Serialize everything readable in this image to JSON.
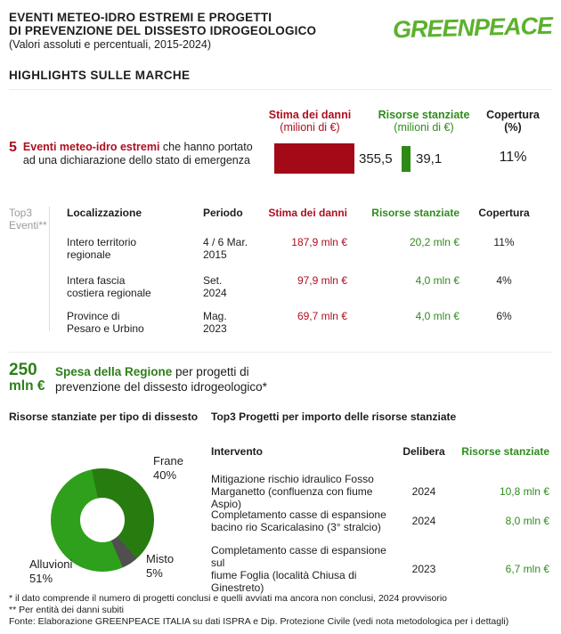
{
  "colors": {
    "red_text": "#ad0f1f",
    "red_bar": "#a40917",
    "green_text": "#2f8c1d",
    "green_bar": "#2e8a17",
    "logo_green": "#5cb12d",
    "donut_frane": "#287c0f",
    "donut_misto": "#4f4f4f",
    "donut_alluvioni": "#2fa01b"
  },
  "header": {
    "title_line1": "EVENTI METEO-IDRO ESTREMI E PROGETTI",
    "title_line2": "DI PREVENZIONE DEL DISSESTO IDROGEOLOGICO",
    "subtitle": "(Valori assoluti e percentuali, 2015-2024)",
    "logo_text": "GREENPEACE",
    "section_heading": "HIGHLIGHTS SULLE MARCHE"
  },
  "summary": {
    "count": "5",
    "lead_bold": "Eventi meteo-idro estremi",
    "lead_rest": " che hanno portato ad una dichiarazione dello stato di emergenza",
    "columns": {
      "damage_title": "Stima dei danni",
      "damage_sub": "(milioni di €)",
      "resources_title": "Risorse stanziate",
      "resources_sub": "(milioni di €)",
      "coverage_title": "Copertura",
      "coverage_sub": "(%)"
    },
    "damage_value": "355,5",
    "resources_value": "39,1",
    "coverage_value": "11%"
  },
  "events_table": {
    "side_label_1": "Top3",
    "side_label_2": "Eventi**",
    "headers": {
      "localizzazione": "Localizzazione",
      "periodo": "Periodo",
      "stima": "Stima dei danni",
      "risorse": "Risorse stanziate",
      "copertura": "Copertura"
    },
    "rows": [
      {
        "loc1": "Intero territorio",
        "loc2": "regionale",
        "per1": "4 / 6 Mar.",
        "per2": "2015",
        "stima": "187,9 mln €",
        "risorse": "20,2 mln €",
        "copertura": "11%"
      },
      {
        "loc1": "Intera fascia",
        "loc2": "costiera regionale",
        "per1": "Set.",
        "per2": "2024",
        "stima": "97,9 mln €",
        "risorse": "4,0 mln €",
        "copertura": "4%"
      },
      {
        "loc1": "Province di",
        "loc2": "Pesaro e Urbino",
        "per1": "Mag.",
        "per2": "2023",
        "stima": "69,7 mln €",
        "risorse": "4,0 mln €",
        "copertura": "6%"
      }
    ]
  },
  "spending": {
    "amount_1": "250",
    "amount_2": "mln €",
    "desc_bold": "Spesa della Regione",
    "desc_rest": " per progetti di prevenzione del dissesto idrogeologico*"
  },
  "donut_section": {
    "title": "Risorse stanziate per tipo di dissesto"
  },
  "projects_table": {
    "title": "Top3 Progetti per importo delle risorse stanziate",
    "headers": {
      "intervento": "Intervento",
      "delibera": "Delibera",
      "risorse": "Risorse stanziate"
    },
    "rows": [
      {
        "int1": "Mitigazione rischio idraulico Fosso",
        "int2": "Marganetto (confluenza con fiume Aspio)",
        "delibera": "2024",
        "risorse": "10,8 mln €"
      },
      {
        "int1": "Completamento casse di espansione",
        "int2": "bacino rio Scaricalasino (3° stralcio)",
        "delibera": "2024",
        "risorse": "8,0 mln €"
      },
      {
        "int1": "Completamento casse di espansione sul",
        "int2": "fiume Foglia (località Chiusa di Ginestreto)",
        "delibera": "2023",
        "risorse": "6,7 mln €"
      }
    ]
  },
  "footer": {
    "note1": "* il dato comprende il numero di progetti conclusi e quelli avviati ma ancora non conclusi, 2024 provvisorio",
    "note2": "** Per entità dei danni subiti",
    "note3": "Fonte: Elaborazione GREENPEACE ITALIA su dati ISPRA e Dip. Protezione Civile (vedi nota metodologica per i dettagli)"
  },
  "chart_data": [
    {
      "type": "bar",
      "orientation": "horizontal",
      "title": "Eventi meteo-idro estremi: stima dei danni vs risorse stanziate (milioni di €)",
      "categories": [
        "Stima dei danni (milioni di €)",
        "Risorse stanziate (milioni di €)"
      ],
      "values": [
        355.5,
        39.1
      ],
      "value_labels": [
        "355,5",
        "39,1"
      ],
      "coverage_pct": "11%",
      "colors": [
        "#a40917",
        "#2e8a17"
      ],
      "xlim": [
        0,
        355.5
      ]
    },
    {
      "type": "pie",
      "donut": true,
      "title": "Risorse stanziate per tipo di dissesto",
      "categories": [
        "Frane",
        "Misto",
        "Alluvioni"
      ],
      "values": [
        40,
        5,
        51
      ],
      "value_labels": [
        "40%",
        "5%",
        "51%"
      ],
      "colors": [
        "#287c0f",
        "#4f4f4f",
        "#2fa01b"
      ],
      "start_angle_deg": -12,
      "legend_position": "around"
    }
  ]
}
